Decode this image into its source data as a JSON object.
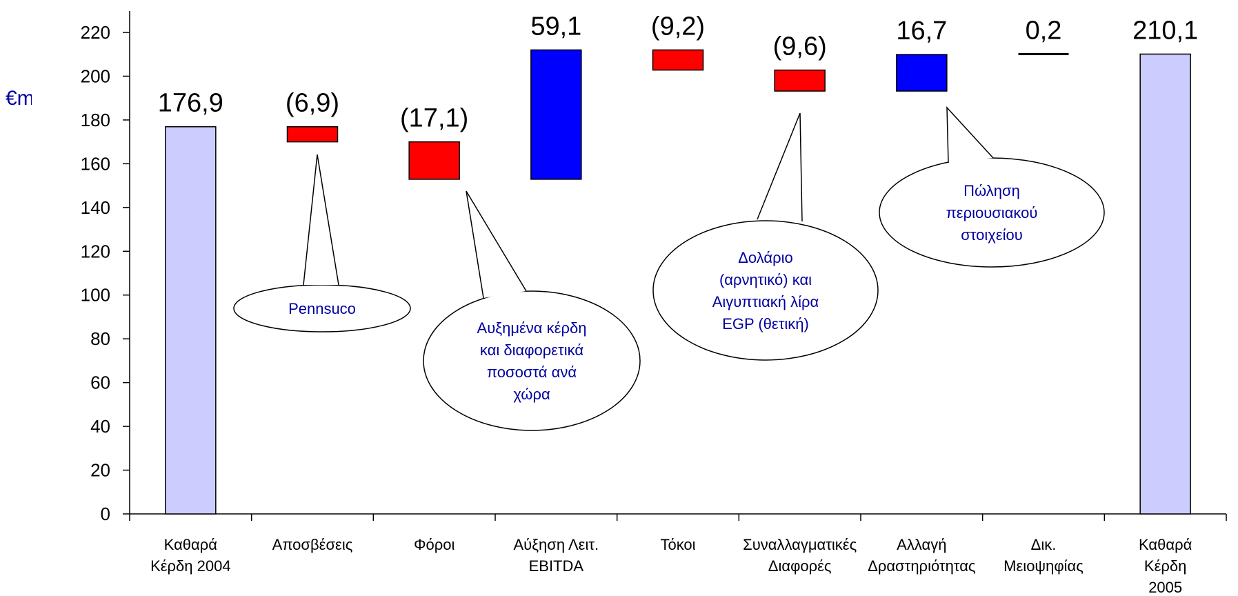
{
  "chart_data": {
    "type": "bar",
    "subtype": "waterfall",
    "unit_label": "€m",
    "ylim": [
      0,
      220
    ],
    "yticks": [
      "0",
      "20",
      "40",
      "60",
      "80",
      "100",
      "120",
      "140",
      "160",
      "180",
      "200",
      "220"
    ],
    "categories": [
      [
        "Καθαρά",
        "Κέρδη 2004"
      ],
      [
        "Αποσβέσεις"
      ],
      [
        "Φόροι"
      ],
      [
        "Αύξηση Λειτ.",
        "EBITDA"
      ],
      [
        "Τόκοι"
      ],
      [
        "Συναλλαγματικές",
        "Διαφορές"
      ],
      [
        "Αλλαγή",
        "Δραστηριότητας"
      ],
      [
        "Δικ.",
        "Μειοψηφίας"
      ],
      [
        "Καθαρά",
        "Κέρδη",
        "2005"
      ]
    ],
    "bars": [
      {
        "kind": "total",
        "start": 0,
        "end": 176.9,
        "label": "176,9",
        "color": "#ccccff"
      },
      {
        "kind": "decrease",
        "start": 176.9,
        "end": 170.0,
        "label": "(6,9)",
        "color": "#ff0000"
      },
      {
        "kind": "decrease",
        "start": 170.0,
        "end": 152.9,
        "label": "(17,1)",
        "color": "#ff0000"
      },
      {
        "kind": "increase",
        "start": 152.9,
        "end": 212.0,
        "label": "59,1",
        "color": "#0000ff"
      },
      {
        "kind": "decrease",
        "start": 212.0,
        "end": 202.8,
        "label": "(9,2)",
        "color": "#ff0000"
      },
      {
        "kind": "decrease",
        "start": 202.8,
        "end": 193.2,
        "label": "(9,6)",
        "color": "#ff0000"
      },
      {
        "kind": "increase",
        "start": 193.2,
        "end": 209.9,
        "label": "16,7",
        "color": "#0000ff"
      },
      {
        "kind": "increase",
        "start": 209.9,
        "end": 210.1,
        "label": "0,2",
        "color": "#000000"
      },
      {
        "kind": "total",
        "start": 0,
        "end": 210.1,
        "label": "210,1",
        "color": "#ccccff"
      }
    ],
    "annotations": [
      {
        "text": [
          "Pennsuco"
        ],
        "bar": 1
      },
      {
        "text": [
          "Αυξημένα κέρδη",
          "και διαφορετικά",
          "ποσοστά ανά",
          "χώρα"
        ],
        "bar": 2
      },
      {
        "text": [
          "Δολάριο",
          "(αρνητικό) και",
          "Αιγυπτιακή λίρα",
          "EGP (θετική)"
        ],
        "bar": 5
      },
      {
        "text": [
          "Πώληση",
          "περιουσιακού",
          "στοιχείου"
        ],
        "bar": 6
      }
    ]
  }
}
